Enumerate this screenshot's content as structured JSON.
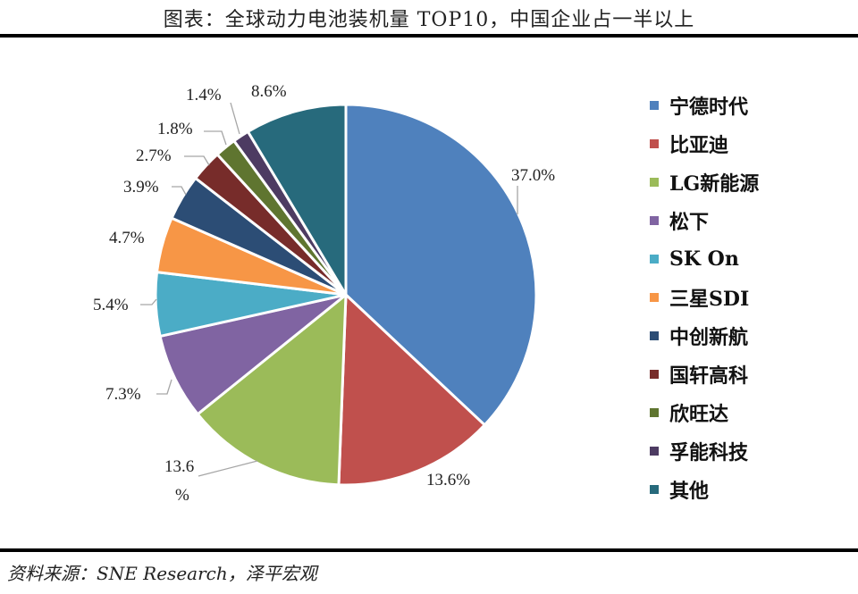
{
  "header": {
    "title": "图表：全球动力电池装机量 TOP10，中国企业占一半以上"
  },
  "footer": {
    "source": "资料来源：SNE Research，泽平宏观"
  },
  "chart_data": {
    "type": "pie",
    "title": "图表：全球动力电池装机量 TOP10，中国企业占一半以上",
    "start_angle": "12 o'clock, clockwise",
    "legend_position": "right",
    "categories": [
      "宁德时代",
      "比亚迪",
      "LG新能源",
      "松下",
      "SK On",
      "三星SDI",
      "中创新航",
      "国轩高科",
      "欣旺达",
      "孚能科技",
      "其他"
    ],
    "values": [
      37.0,
      13.6,
      13.6,
      7.3,
      5.4,
      4.7,
      3.9,
      2.7,
      1.8,
      1.4,
      8.6
    ],
    "labels": [
      "37.0%",
      "13.6%",
      "13.6%",
      "7.3%",
      "5.4%",
      "4.7%",
      "3.9%",
      "2.7%",
      "1.8%",
      "1.4%",
      "8.6%"
    ],
    "colors": [
      "#4f81bd",
      "#c0504d",
      "#9bbb59",
      "#8064a2",
      "#4bacc6",
      "#f79646",
      "#2c4d75",
      "#772c2a",
      "#5f7530",
      "#4d3b62",
      "#276a7c"
    ],
    "unit": "%"
  },
  "legend": {
    "items": [
      {
        "label": "宁德时代",
        "color": "#4f81bd"
      },
      {
        "label": "比亚迪",
        "color": "#c0504d"
      },
      {
        "label": "LG新能源",
        "color": "#9bbb59"
      },
      {
        "label": "松下",
        "color": "#8064a2"
      },
      {
        "label": "SK On",
        "color": "#4bacc6"
      },
      {
        "label": "三星SDI",
        "color": "#f79646"
      },
      {
        "label": "中创新航",
        "color": "#2c4d75"
      },
      {
        "label": "国轩高科",
        "color": "#772c2a"
      },
      {
        "label": "欣旺达",
        "color": "#5f7530"
      },
      {
        "label": "孚能科技",
        "color": "#4d3b62"
      },
      {
        "label": "其他",
        "color": "#276a7c"
      }
    ]
  }
}
